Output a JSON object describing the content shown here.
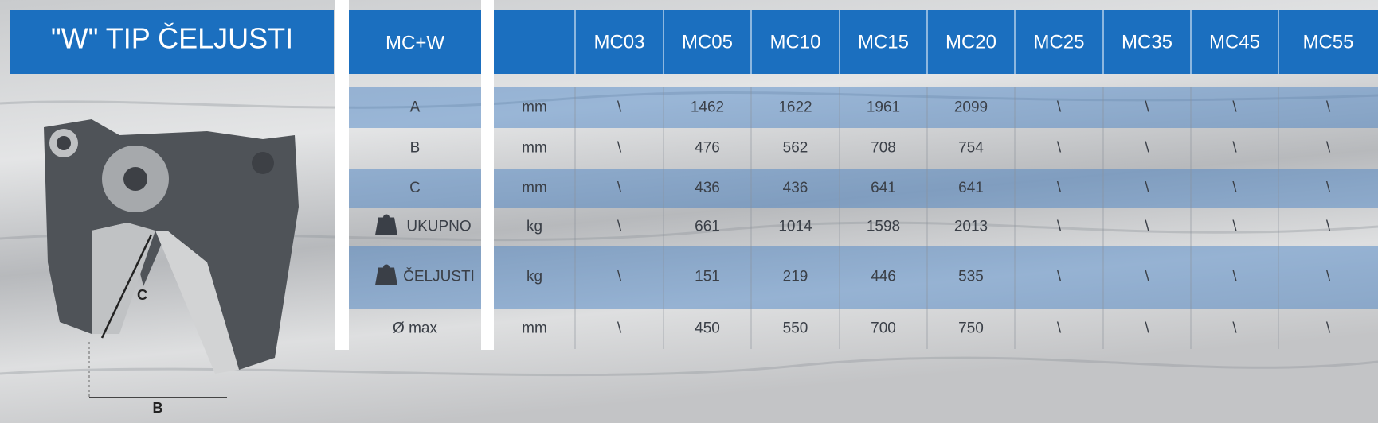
{
  "title": "\"W\" TIP ČELJUSTI",
  "header": {
    "label": "MC+W",
    "models": [
      "MC03",
      "MC05",
      "MC10",
      "MC15",
      "MC20",
      "MC25",
      "MC35",
      "MC45",
      "MC55"
    ]
  },
  "diagram": {
    "labels": [
      "C",
      "B"
    ]
  },
  "rows": [
    {
      "label": "A",
      "unit": "mm",
      "values": [
        "\\",
        1462,
        1622,
        1961,
        2099,
        "\\",
        "\\",
        "\\",
        "\\"
      ]
    },
    {
      "label": "B",
      "unit": "mm",
      "values": [
        "\\",
        476,
        562,
        708,
        754,
        "\\",
        "\\",
        "\\",
        "\\"
      ]
    },
    {
      "label": "C",
      "unit": "mm",
      "values": [
        "\\",
        436,
        436,
        641,
        641,
        "\\",
        "\\",
        "\\",
        "\\"
      ]
    },
    {
      "label": "UKUPNO",
      "unit": "kg",
      "values": [
        "\\",
        661,
        1014,
        1598,
        2013,
        "\\",
        "\\",
        "\\",
        "\\"
      ]
    },
    {
      "label": "ČELJUSTI",
      "unit": "kg",
      "values": [
        "\\",
        151,
        219,
        446,
        535,
        "\\",
        "\\",
        "\\",
        "\\"
      ]
    },
    {
      "label": "Ø  max",
      "unit": "mm",
      "values": [
        "\\",
        450,
        550,
        700,
        750,
        "\\",
        "\\",
        "\\",
        "\\"
      ]
    }
  ]
}
